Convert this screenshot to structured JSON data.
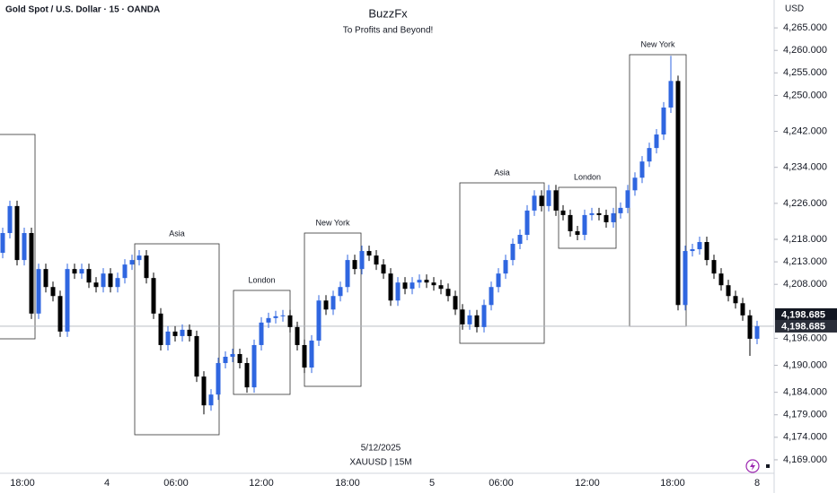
{
  "chart_data": {
    "type": "candlestick",
    "symbol_header": "Gold Spot / U.S. Dollar · 15 · OANDA",
    "title": "BuzzFx",
    "subtitle": "To Profits and Beyond!",
    "footer_date": "5/12/2025",
    "footer_symbol": "XAUUSD | 15M",
    "y_axis_unit": "USD",
    "up_color": "#2f66e0",
    "down_color": "#000000",
    "ylim": [
      4165.6,
      4271.2
    ],
    "yticks": [
      {
        "value": 4265,
        "label": "4,265.000"
      },
      {
        "value": 4260,
        "label": "4,260.000"
      },
      {
        "value": 4255,
        "label": "4,255.000"
      },
      {
        "value": 4250,
        "label": "4,250.000"
      },
      {
        "value": 4242,
        "label": "4,242.000"
      },
      {
        "value": 4234,
        "label": "4,234.000"
      },
      {
        "value": 4226,
        "label": "4,226.000"
      },
      {
        "value": 4218,
        "label": "4,218.000"
      },
      {
        "value": 4213,
        "label": "4,213.000"
      },
      {
        "value": 4208,
        "label": "4,208.000"
      },
      {
        "value": 4196,
        "label": "4,196.000"
      },
      {
        "value": 4190,
        "label": "4,190.000"
      },
      {
        "value": 4184,
        "label": "4,184.000"
      },
      {
        "value": 4179,
        "label": "4,179.000"
      },
      {
        "value": 4174,
        "label": "4,174.000"
      },
      {
        "value": 4169,
        "label": "4,169.000"
      }
    ],
    "x_labels": [
      "18:00",
      "4",
      "06:00",
      "12:00",
      "18:00",
      "5",
      "06:00",
      "12:00",
      "18:00",
      "8"
    ],
    "price_tags": [
      {
        "value": 4198.685,
        "label": "4,198.685"
      },
      {
        "value": 4198.685,
        "label": "4,198.685"
      }
    ],
    "sessions": [
      "Asia",
      "London",
      "New York",
      "Asia",
      "London",
      "New York"
    ],
    "candles": [
      [
        4215.0,
        4220.6,
        4213.8,
        4219.4
      ],
      [
        4219.4,
        4226.6,
        4218.2,
        4225.4
      ],
      [
        4225.4,
        4226.6,
        4212.2,
        4213.4
      ],
      [
        4213.4,
        4220.6,
        4212.2,
        4219.4
      ],
      [
        4219.4,
        4220.6,
        4200.3,
        4201.5
      ],
      [
        4201.5,
        4212.6,
        4200.3,
        4211.4
      ],
      [
        4211.4,
        4212.6,
        4206.2,
        4207.4
      ],
      [
        4207.4,
        4208.6,
        4204.2,
        4205.4
      ],
      [
        4205.4,
        4206.6,
        4196.3,
        4197.5
      ],
      [
        4197.5,
        4212.6,
        4196.3,
        4211.4
      ],
      [
        4211.4,
        4212.6,
        4209.2,
        4210.4
      ],
      [
        4210.4,
        4212.6,
        4209.2,
        4211.4
      ],
      [
        4211.4,
        4212.6,
        4207.2,
        4208.4
      ],
      [
        4208.4,
        4209.6,
        4206.2,
        4207.4
      ],
      [
        4207.4,
        4211.6,
        4206.2,
        4210.4
      ],
      [
        4210.4,
        4211.6,
        4206.2,
        4207.4
      ],
      [
        4207.4,
        4210.6,
        4206.2,
        4209.4
      ],
      [
        4209.4,
        4213.6,
        4208.2,
        4212.4
      ],
      [
        4212.4,
        4214.6,
        4211.2,
        4213.4
      ],
      [
        4213.4,
        4215.6,
        4212.2,
        4214.4
      ],
      [
        4214.4,
        4215.6,
        4208.2,
        4209.4
      ],
      [
        4209.4,
        4210.6,
        4200.3,
        4201.5
      ],
      [
        4201.5,
        4202.7,
        4193.3,
        4194.5
      ],
      [
        4194.5,
        4198.7,
        4193.3,
        4197.5
      ],
      [
        4197.5,
        4198.7,
        4195.3,
        4196.5
      ],
      [
        4196.5,
        4199.1,
        4195.3,
        4197.9
      ],
      [
        4197.9,
        4199.1,
        4195.3,
        4196.5
      ],
      [
        4196.5,
        4197.7,
        4186.3,
        4187.5
      ],
      [
        4187.5,
        4188.7,
        4179.1,
        4181.1
      ],
      [
        4181.1,
        4184.7,
        4179.9,
        4183.5
      ],
      [
        4183.5,
        4191.7,
        4182.3,
        4190.5
      ],
      [
        4190.5,
        4193.1,
        4189.3,
        4191.9
      ],
      [
        4191.9,
        4193.7,
        4190.7,
        4192.5
      ],
      [
        4192.5,
        4193.7,
        4189.3,
        4190.5
      ],
      [
        4190.5,
        4191.7,
        4183.9,
        4185.1
      ],
      [
        4185.1,
        4195.7,
        4183.9,
        4194.5
      ],
      [
        4194.5,
        4200.7,
        4193.3,
        4199.5
      ],
      [
        4199.5,
        4201.7,
        4198.3,
        4200.5
      ],
      [
        4200.5,
        4202.1,
        4199.3,
        4200.9
      ],
      [
        4200.9,
        4202.3,
        4199.7,
        4201.1
      ],
      [
        4201.1,
        4202.3,
        4197.3,
        4198.5
      ],
      [
        4198.5,
        4199.7,
        4193.3,
        4194.5
      ],
      [
        4194.5,
        4195.7,
        4188.3,
        4189.5
      ],
      [
        4189.5,
        4196.7,
        4188.3,
        4195.5
      ],
      [
        4195.5,
        4205.6,
        4194.3,
        4204.4
      ],
      [
        4204.4,
        4205.6,
        4201.2,
        4202.4
      ],
      [
        4202.4,
        4206.6,
        4201.2,
        4205.4
      ],
      [
        4205.4,
        4208.6,
        4204.2,
        4207.4
      ],
      [
        4207.4,
        4214.6,
        4206.2,
        4213.4
      ],
      [
        4213.4,
        4214.6,
        4210.2,
        4211.4
      ],
      [
        4211.4,
        4216.6,
        4210.2,
        4215.4
      ],
      [
        4215.4,
        4216.6,
        4213.2,
        4214.4
      ],
      [
        4214.4,
        4215.6,
        4211.2,
        4212.4
      ],
      [
        4212.4,
        4213.6,
        4209.2,
        4210.4
      ],
      [
        4210.4,
        4211.6,
        4203.2,
        4204.4
      ],
      [
        4204.4,
        4209.6,
        4203.2,
        4208.4
      ],
      [
        4208.4,
        4209.6,
        4205.8,
        4207.0
      ],
      [
        4207.0,
        4209.6,
        4205.8,
        4208.4
      ],
      [
        4208.4,
        4210.2,
        4207.2,
        4209.0
      ],
      [
        4209.0,
        4210.2,
        4207.2,
        4208.4
      ],
      [
        4208.4,
        4209.6,
        4206.6,
        4207.8
      ],
      [
        4207.8,
        4209.0,
        4205.8,
        4207.0
      ],
      [
        4207.0,
        4208.2,
        4204.2,
        4205.4
      ],
      [
        4205.4,
        4206.6,
        4201.2,
        4202.4
      ],
      [
        4202.4,
        4203.6,
        4197.9,
        4199.1
      ],
      [
        4199.1,
        4202.3,
        4197.9,
        4201.1
      ],
      [
        4201.1,
        4202.3,
        4197.3,
        4198.5
      ],
      [
        4198.5,
        4204.6,
        4197.3,
        4203.4
      ],
      [
        4203.4,
        4208.6,
        4202.2,
        4207.4
      ],
      [
        4207.4,
        4211.6,
        4206.2,
        4210.4
      ],
      [
        4210.4,
        4214.6,
        4209.2,
        4213.4
      ],
      [
        4213.4,
        4218.2,
        4212.2,
        4217.0
      ],
      [
        4217.0,
        4220.2,
        4215.8,
        4219.0
      ],
      [
        4219.0,
        4225.6,
        4217.8,
        4224.4
      ],
      [
        4224.4,
        4228.9,
        4223.2,
        4227.7
      ],
      [
        4227.7,
        4228.9,
        4224.2,
        4225.4
      ],
      [
        4225.4,
        4230.1,
        4224.2,
        4228.9
      ],
      [
        4228.9,
        4230.1,
        4223.2,
        4224.4
      ],
      [
        4224.4,
        4225.6,
        4222.2,
        4223.4
      ],
      [
        4223.4,
        4224.6,
        4218.6,
        4219.8
      ],
      [
        4219.8,
        4221.0,
        4217.8,
        4219.0
      ],
      [
        4219.0,
        4224.6,
        4217.8,
        4223.4
      ],
      [
        4223.4,
        4225.0,
        4222.2,
        4223.8
      ],
      [
        4223.8,
        4225.0,
        4222.2,
        4223.4
      ],
      [
        4223.4,
        4224.6,
        4220.6,
        4221.8
      ],
      [
        4221.8,
        4225.0,
        4220.6,
        4223.8
      ],
      [
        4223.8,
        4226.2,
        4222.6,
        4225.0
      ],
      [
        4225.0,
        4230.1,
        4223.8,
        4228.9
      ],
      [
        4228.9,
        4232.9,
        4227.7,
        4231.7
      ],
      [
        4231.7,
        4236.5,
        4230.5,
        4235.3
      ],
      [
        4235.3,
        4239.5,
        4234.1,
        4238.3
      ],
      [
        4238.3,
        4242.5,
        4237.1,
        4241.3
      ],
      [
        4241.3,
        4248.5,
        4240.1,
        4247.3
      ],
      [
        4247.3,
        4258.8,
        4246.1,
        4253.2
      ],
      [
        4253.2,
        4254.4,
        4202.2,
        4203.4
      ],
      [
        4203.4,
        4216.6,
        4202.2,
        4215.4
      ],
      [
        4215.4,
        4217.0,
        4214.2,
        4215.8
      ],
      [
        4215.8,
        4218.6,
        4214.6,
        4217.4
      ],
      [
        4217.4,
        4218.6,
        4212.2,
        4213.4
      ],
      [
        4213.4,
        4214.6,
        4209.2,
        4210.4
      ],
      [
        4210.4,
        4211.6,
        4206.6,
        4207.8
      ],
      [
        4207.8,
        4209.0,
        4204.2,
        4205.4
      ],
      [
        4205.4,
        4206.6,
        4202.6,
        4203.8
      ],
      [
        4203.8,
        4205.0,
        4199.9,
        4201.1
      ],
      [
        4201.1,
        4202.3,
        4192.1,
        4195.9
      ],
      [
        4195.9,
        4199.9,
        4194.7,
        4198.7
      ]
    ]
  }
}
